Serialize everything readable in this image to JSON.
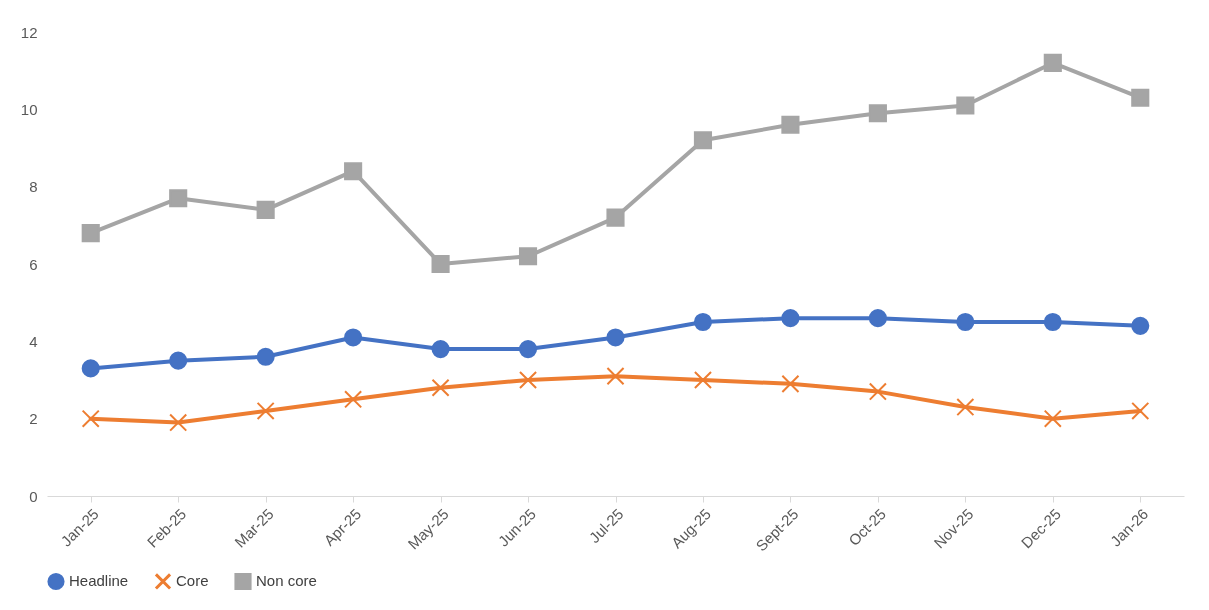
{
  "chart_data": {
    "type": "line",
    "categories": [
      "Jan-25",
      "Feb-25",
      "Mar-25",
      "Apr-25",
      "May-25",
      "Jun-25",
      "Jul-25",
      "Aug-25",
      "Sept-25",
      "Oct-25",
      "Nov-25",
      "Dec-25",
      "Jan-26"
    ],
    "series": [
      {
        "name": "Headline",
        "color": "#4472c4",
        "marker": "circle",
        "values": [
          3.3,
          3.5,
          3.6,
          4.1,
          3.8,
          3.8,
          4.1,
          4.5,
          4.6,
          4.6,
          4.5,
          4.5,
          4.4
        ]
      },
      {
        "name": "Core",
        "color": "#ed7d31",
        "marker": "cross",
        "values": [
          2.0,
          1.9,
          2.2,
          2.5,
          2.8,
          3.0,
          3.1,
          3.0,
          2.9,
          2.7,
          2.3,
          2.0,
          2.2
        ]
      },
      {
        "name": "Non core",
        "color": "#a5a5a5",
        "marker": "square",
        "values": [
          6.8,
          7.7,
          7.4,
          8.4,
          6.0,
          6.2,
          7.2,
          9.2,
          9.6,
          9.9,
          10.1,
          11.2,
          10.3
        ]
      }
    ],
    "ylim": [
      0,
      12
    ],
    "yticks": [
      0,
      2,
      4,
      6,
      8,
      10,
      12
    ],
    "grid": false,
    "legend": "bottom",
    "line_style": "solid"
  }
}
